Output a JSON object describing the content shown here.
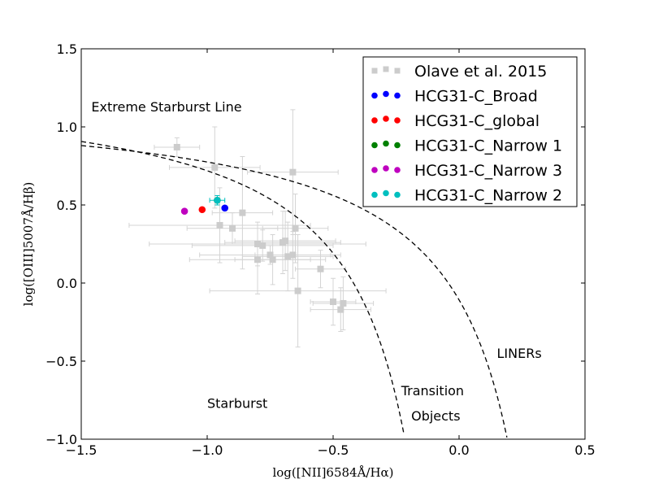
{
  "chart_data": {
    "type": "scatter",
    "title": "",
    "xlabel": "log([NII]6584Å/Hα)",
    "ylabel": "log([OIII]5007Å/Hβ)",
    "xlim": [
      -1.5,
      0.5
    ],
    "ylim": [
      -1.0,
      1.5
    ],
    "xticks": [
      -1.5,
      -1.0,
      -0.5,
      0.0,
      0.5
    ],
    "xtick_labels": [
      "−1.5",
      "−1.0",
      "−0.5",
      "0.0",
      "0.5"
    ],
    "yticks": [
      -1.0,
      -0.5,
      0.0,
      0.5,
      1.0,
      1.5
    ],
    "ytick_labels": [
      "−1.0",
      "−0.5",
      "0.0",
      "0.5",
      "1.0",
      "1.5"
    ],
    "grid": false,
    "legend_position": "top-right",
    "series": [
      {
        "name": "Olave et al. 2015",
        "color": "#cccccc",
        "marker": "square",
        "points": [
          {
            "x": -1.12,
            "y": 0.87,
            "xerr": 0.09,
            "yerr": 0.06
          },
          {
            "x": -0.97,
            "y": 0.74,
            "xerr": 0.18,
            "yerr": 0.26
          },
          {
            "x": -0.66,
            "y": 0.71,
            "xerr": 0.18,
            "yerr": 0.4
          },
          {
            "x": -0.95,
            "y": 0.37,
            "xerr": 0.36,
            "yerr": 0.24
          },
          {
            "x": -0.9,
            "y": 0.35,
            "xerr": 0.18,
            "yerr": 0.1
          },
          {
            "x": -0.86,
            "y": 0.45,
            "xerr": 0.12,
            "yerr": 0.36
          },
          {
            "x": -0.8,
            "y": 0.25,
            "xerr": 0.43,
            "yerr": 0.14
          },
          {
            "x": -0.78,
            "y": 0.24,
            "xerr": 0.28,
            "yerr": 0.1
          },
          {
            "x": -0.8,
            "y": 0.15,
            "xerr": 0.27,
            "yerr": 0.22
          },
          {
            "x": -0.75,
            "y": 0.18,
            "xerr": 0.28,
            "yerr": 0.06
          },
          {
            "x": -0.74,
            "y": 0.15,
            "xerr": 0.15,
            "yerr": 0.16
          },
          {
            "x": -0.7,
            "y": 0.26,
            "xerr": 0.23,
            "yerr": 0.2
          },
          {
            "x": -0.69,
            "y": 0.27,
            "xerr": 0.2,
            "yerr": 0.19
          },
          {
            "x": -0.65,
            "y": 0.35,
            "xerr": 0.13,
            "yerr": 0.22
          },
          {
            "x": -0.68,
            "y": 0.17,
            "xerr": 0.18,
            "yerr": 0.22
          },
          {
            "x": -0.66,
            "y": 0.18,
            "xerr": 0.15,
            "yerr": 0.15
          },
          {
            "x": -0.64,
            "y": -0.05,
            "xerr": 0.35,
            "yerr": 0.36
          },
          {
            "x": -0.55,
            "y": 0.09,
            "xerr": 0.1,
            "yerr": 0.12
          },
          {
            "x": -0.5,
            "y": -0.12,
            "xerr": 0.09,
            "yerr": 0.15
          },
          {
            "x": -0.46,
            "y": -0.13,
            "xerr": 0.12,
            "yerr": 0.17
          },
          {
            "x": -0.47,
            "y": -0.17,
            "xerr": 0.12,
            "yerr": 0.14
          }
        ]
      },
      {
        "name": "HCG31-C_Broad",
        "color": "#0000ff",
        "marker": "circle",
        "points": [
          {
            "x": -0.93,
            "y": 0.48,
            "xerr": 0.0,
            "yerr": 0.0
          }
        ]
      },
      {
        "name": "HCG31-C_global",
        "color": "#ff0000",
        "marker": "circle",
        "points": [
          {
            "x": -1.02,
            "y": 0.47,
            "xerr": 0.0,
            "yerr": 0.0
          }
        ]
      },
      {
        "name": "HCG31-C_Narrow 1",
        "color": "#008000",
        "marker": "circle",
        "points": [
          {
            "x": -0.96,
            "y": 0.53,
            "xerr": 0.0,
            "yerr": 0.0
          }
        ]
      },
      {
        "name": "HCG31-C_Narrow 3",
        "color": "#bf00bf",
        "marker": "circle",
        "points": [
          {
            "x": -1.09,
            "y": 0.46,
            "xerr": 0.0,
            "yerr": 0.0
          }
        ]
      },
      {
        "name": "HCG31-C_Narrow 2",
        "color": "#00bfbf",
        "marker": "circle",
        "points": [
          {
            "x": -0.96,
            "y": 0.53,
            "xerr": 0.03,
            "yerr": 0.03
          }
        ]
      }
    ],
    "curves": [
      {
        "name": "Extreme Starburst Line",
        "formula": "0.61/(x-0.47)+1.19",
        "style": "dashed",
        "color": "#000000",
        "x_end": 0.19
      },
      {
        "name": "Starburst/Transition boundary",
        "formula": "0.61/(x-0.05)+1.3",
        "style": "dashed",
        "color": "#000000",
        "x_end": -0.22
      }
    ],
    "annotations": [
      {
        "text": "Extreme Starburst Line",
        "x": -1.46,
        "y": 1.1
      },
      {
        "text": "Starburst",
        "x": -1.0,
        "y": -0.8
      },
      {
        "text": "Transition",
        "x": -0.23,
        "y": -0.72
      },
      {
        "text": "Objects",
        "x": -0.19,
        "y": -0.88
      },
      {
        "text": "LINERs",
        "x": 0.15,
        "y": -0.48
      }
    ]
  }
}
